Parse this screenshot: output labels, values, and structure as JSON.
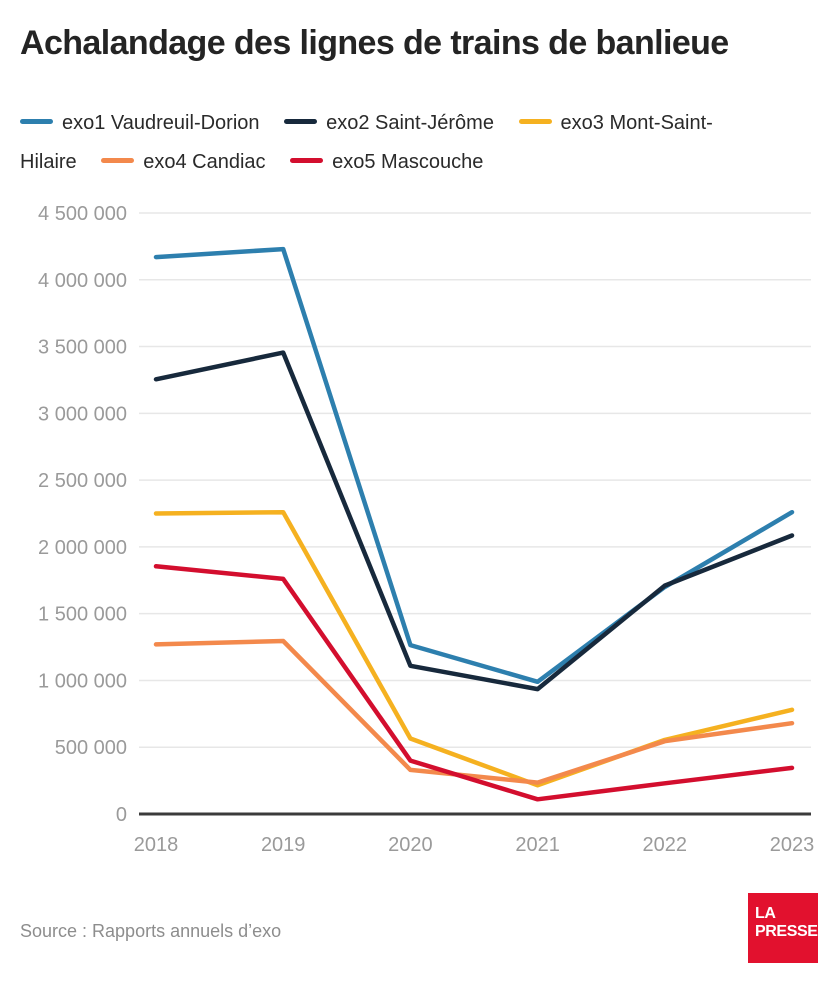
{
  "title": "Achalandage des lignes de trains de banlieue",
  "source": "Source : Rapports annuels d’exo",
  "logo": {
    "line1": "LA",
    "line2": "PRESSE",
    "color": "#e2112e"
  },
  "chart_data": {
    "type": "line",
    "title": "Achalandage des lignes de trains de banlieue",
    "x": [
      2018,
      2019,
      2020,
      2021,
      2022,
      2023
    ],
    "series": [
      {
        "name": "exo1 Vaudreuil-Dorion",
        "color": "#2d7fae",
        "values": [
          4170000,
          4230000,
          1265000,
          990000,
          1700000,
          2260000
        ]
      },
      {
        "name": "exo2 Saint-Jérôme",
        "color": "#17293c",
        "values": [
          3255000,
          3455000,
          1110000,
          935000,
          1710000,
          2085000
        ]
      },
      {
        "name": "exo3 Mont-Saint-Hilaire",
        "color": "#f5b120",
        "values": [
          2250000,
          2260000,
          565000,
          215000,
          555000,
          780000
        ]
      },
      {
        "name": "exo4 Candiac",
        "color": "#f3894c",
        "values": [
          1270000,
          1295000,
          330000,
          235000,
          545000,
          680000
        ]
      },
      {
        "name": "exo5 Mascouche",
        "color": "#d30e2e",
        "values": [
          1855000,
          1760000,
          400000,
          110000,
          230000,
          345000
        ]
      }
    ],
    "ylim": [
      0,
      4500000
    ],
    "ytick_step": 500000,
    "y_tick_labels": [
      "0",
      "500 000",
      "1 000 000",
      "1 500 000",
      "2 000 000",
      "2 500 000",
      "3 000 000",
      "3 500 000",
      "4 000 000",
      "4 500 000"
    ],
    "xlabel": "",
    "ylabel": "",
    "legend_position": "top",
    "grid": "horizontal",
    "style": {
      "grid_color": "#e7e7e7",
      "axis_color": "#3b3b3b",
      "tick_label_color": "#9a9a9a",
      "line_width": 4.5
    }
  }
}
